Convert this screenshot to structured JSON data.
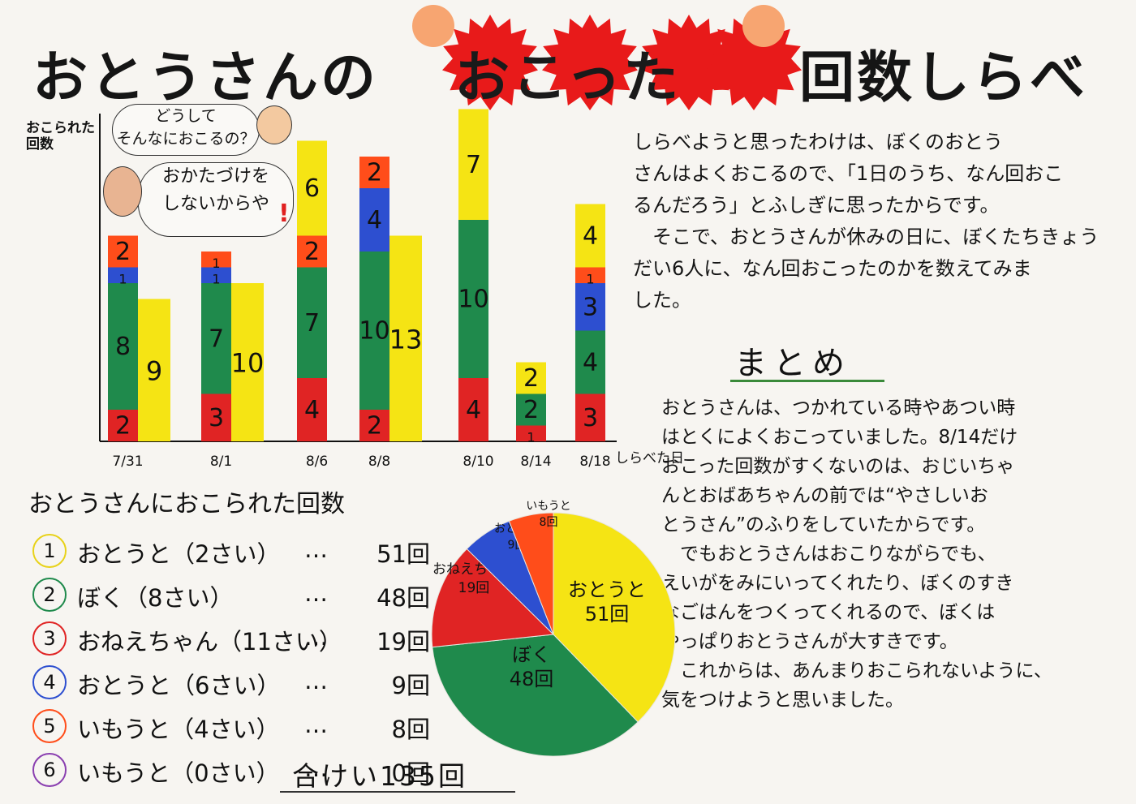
{
  "title": {
    "part1": "おとうさんの",
    "part2": "おこった",
    "part3": "回数しらべ"
  },
  "chart_data": [
    {
      "type": "bar",
      "ylabel": "おこられた回数",
      "xlabel": "しらべた日",
      "categories": [
        "7/31",
        "8/1",
        "8/6",
        "8/8",
        "8/10",
        "8/14",
        "8/18"
      ],
      "stacked_series": [
        {
          "color": "#e02424",
          "values": [
            2,
            3,
            4,
            2,
            4,
            1,
            3
          ]
        },
        {
          "color": "#1f8a4c",
          "values": [
            8,
            7,
            7,
            10,
            10,
            2,
            4
          ]
        },
        {
          "color": "#2d4fd0",
          "values": [
            1,
            1,
            0,
            4,
            0,
            0,
            3
          ]
        },
        {
          "color": "#ff4d1a",
          "values": [
            2,
            1,
            2,
            2,
            0,
            0,
            1
          ]
        },
        {
          "color": "#f5e414",
          "values": [
            0,
            0,
            6,
            0,
            7,
            2,
            4
          ]
        }
      ],
      "side_bar": {
        "color": "#f5e414",
        "values": [
          9,
          10,
          null,
          13,
          null,
          null,
          null
        ]
      },
      "hidden_labels": {
        "stack": [
          "",
          "1",
          "",
          "",
          "",
          "",
          "1"
        ]
      }
    },
    {
      "type": "pie",
      "slices": [
        {
          "label": "おとうと",
          "value": 51,
          "value_label": "51回",
          "color": "#f5e414"
        },
        {
          "label": "ぼく",
          "value": 48,
          "value_label": "48回",
          "color": "#1f8a4c"
        },
        {
          "label": "おねえちゃん",
          "value": 19,
          "value_label": "19回",
          "color": "#e02424"
        },
        {
          "label": "おとうと",
          "value": 9,
          "value_label": "9回",
          "color": "#2d4fd0"
        },
        {
          "label": "いもうと",
          "value": 8,
          "value_label": "8回",
          "color": "#ff4d1a"
        }
      ]
    }
  ],
  "bubbles": {
    "child": "どうして\nそんなにおこるの？",
    "dad": "おかたづけを\nしないからや"
  },
  "reason_text": "しらべようと思ったわけは、ぼくのおとう\nさんはよくおこるので、「1日のうち、なん回おこ\nるんだろう」とふしぎに思ったからです。\n　そこで、おとうさんが休みの日に、ぼくたちきょう\nだい6人に、なん回おこったのかを数えてみま\nした。",
  "summary_heading": "まとめ",
  "summary_text": "おとうさんは、つかれている時やあつい時\nはとくによくおこっていました。8/14だけ\nおこった回数がすくないのは、おじいちゃ\nんとおばあちゃんの前では“やさしいお\nとうさん”のふりをしていたからです。\n　でもおとうさんはおこりながらでも、\nえいがをみにいってくれたり、ぼくのすき\nなごはんをつくってくれるので、ぼくは\nやっぱりおとうさんが大すきです。\n　これからは、あんまりおこられないように、\n気をつけようと思いました。",
  "list": {
    "heading": "おとうさんにおこられた回数",
    "items": [
      {
        "num": "1",
        "label": "おとうと（2さい）",
        "dots": "…",
        "count": "51回",
        "color": "#e8d21a"
      },
      {
        "num": "2",
        "label": "ぼく（8さい）",
        "dots": "…",
        "count": "48回",
        "color": "#1f8a4c"
      },
      {
        "num": "3",
        "label": "おねえちゃん（11さい）",
        "dots": "…",
        "count": "19回",
        "color": "#e02424"
      },
      {
        "num": "4",
        "label": "おとうと（6さい）",
        "dots": "…",
        "count": "9回",
        "color": "#2d4fd0"
      },
      {
        "num": "5",
        "label": "いもうと（4さい）",
        "dots": "…",
        "count": "8回",
        "color": "#ff4d1a"
      },
      {
        "num": "6",
        "label": "いもうと（0さい）",
        "dots": "…",
        "count": "0回",
        "color": "#8a3fb0"
      }
    ],
    "total": "合けい135回"
  }
}
